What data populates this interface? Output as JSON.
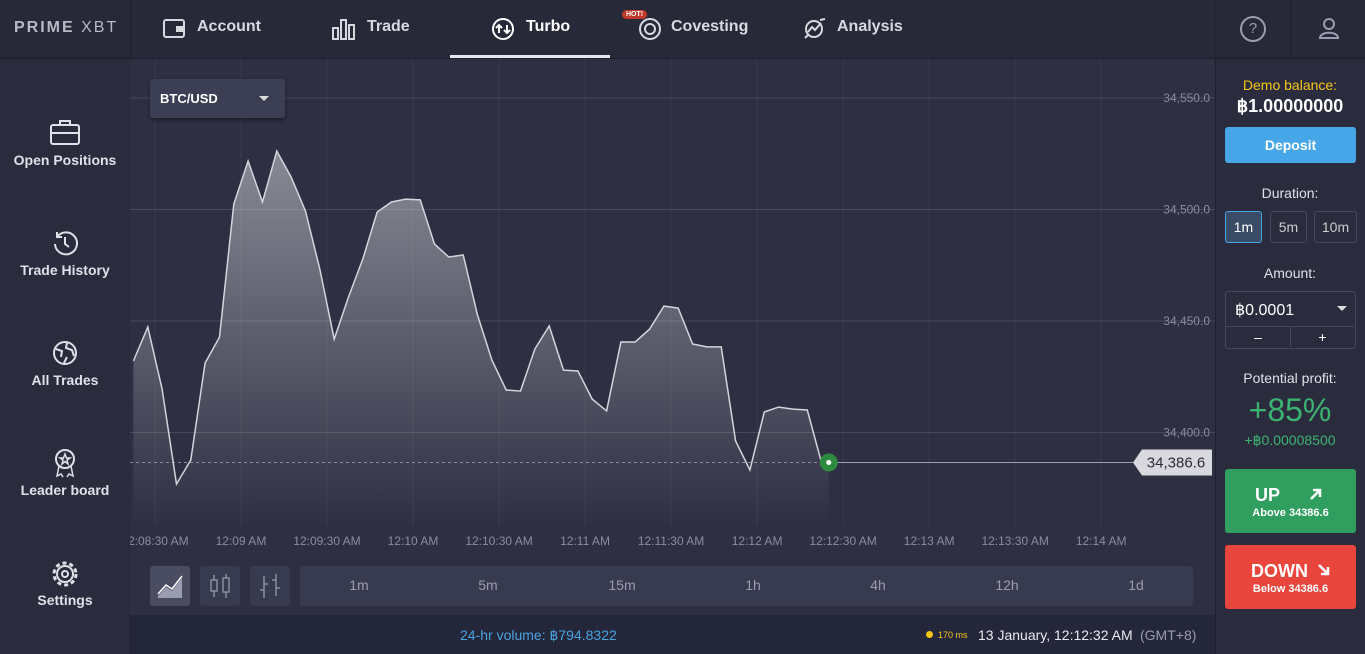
{
  "header": {
    "logo_brand": "PRIME",
    "logo_suffix": "XBT",
    "tabs": [
      "Account",
      "Trade",
      "Turbo",
      "Covesting",
      "Analysis"
    ],
    "hot_badge": "HOT!",
    "help": "?"
  },
  "sidebar": [
    "Open Positions",
    "Trade History",
    "All Trades",
    "Leader board",
    "Settings"
  ],
  "pair": "BTC/USD",
  "chart_data": {
    "type": "line",
    "color": "#d4d5dc",
    "grid": true,
    "x": [
      22.5,
      27.5,
      32.5,
      37.5,
      42.5,
      47.5,
      52.5,
      57.5,
      62.5,
      67.5,
      72.5,
      77.5,
      82.5,
      87.5,
      92.5,
      97.5,
      102.5,
      107.5,
      112.5,
      117.5,
      122.5,
      127.5,
      132.5,
      137.5,
      142.5,
      147.5,
      152.5,
      157.5,
      162.5,
      167.5,
      172.5,
      177.5,
      182.5,
      187.5,
      192.5,
      197.5,
      202.5,
      207.5,
      212.5,
      217.5,
      222.5,
      227.5,
      232.5,
      237.5,
      242.5,
      247.5,
      252.5,
      257.5,
      262.5,
      265
    ],
    "values": [
      34432.1,
      34447.3,
      34419.5,
      34376.9,
      34387.7,
      34431.2,
      34442.8,
      34502.5,
      34521.7,
      34503.4,
      34526.2,
      34514.6,
      34499.3,
      34473.3,
      34441.9,
      34460.8,
      34477.8,
      34498.9,
      34503.4,
      34504.7,
      34504.3,
      34484.5,
      34478.7,
      34479.6,
      34452.7,
      34432.5,
      34419.1,
      34418.6,
      34437.5,
      34447.8,
      34428.0,
      34427.6,
      34415.0,
      34409.7,
      34440.6,
      34440.6,
      34446.4,
      34456.7,
      34455.8,
      34439.7,
      34438.4,
      34438.4,
      34396.2,
      34383.2,
      34409.2,
      34411.4,
      34410.5,
      34410.1,
      34386.3,
      34386.6
    ],
    "xlim": [
      21.3,
      399.7
    ],
    "ylim": [
      34358.1,
      34567.5
    ],
    "xticks": [
      {
        "value": 30,
        "label": "12:08:30 AM"
      },
      {
        "value": 60,
        "label": "12:09 AM"
      },
      {
        "value": 90,
        "label": "12:09:30 AM"
      },
      {
        "value": 120,
        "label": "12:10 AM"
      },
      {
        "value": 150,
        "label": "12:10:30 AM"
      },
      {
        "value": 180,
        "label": "12:11 AM"
      },
      {
        "value": 210,
        "label": "12:11:30 AM"
      },
      {
        "value": 240,
        "label": "12:12 AM"
      },
      {
        "value": 270,
        "label": "12:12:30 AM"
      },
      {
        "value": 300,
        "label": "12:13 AM"
      },
      {
        "value": 330,
        "label": "12:13:30 AM"
      },
      {
        "value": 360,
        "label": "12:14 AM"
      }
    ],
    "yticks": [
      {
        "value": 34400,
        "label": "34,400.0"
      },
      {
        "value": 34450,
        "label": "34,450.0"
      },
      {
        "value": 34500,
        "label": "34,500.0"
      },
      {
        "value": 34550,
        "label": "34,550.0"
      }
    ],
    "current_price": 34386.6,
    "current_price_label": "34,386.6"
  },
  "timeframes": [
    "1m",
    "5m",
    "15m",
    "1h",
    "4h",
    "12h",
    "1d"
  ],
  "panel": {
    "balance_label": "Demo balance:",
    "balance": "฿1.00000000",
    "deposit": "Deposit",
    "duration_label": "Duration:",
    "durations": [
      "1m",
      "5m",
      "10m"
    ],
    "amount_label": "Amount:",
    "amount": "฿0.0001",
    "minus": "–",
    "plus": "+",
    "profit_label": "Potential profit:",
    "profit_pct": "+85%",
    "profit_amount": "+฿0.00008500",
    "up": "UP",
    "up_sub": "Above 34386.6",
    "down": "DOWN",
    "down_sub": "Below 34386.6"
  },
  "footer": {
    "volume": "24-hr volume: ฿794.8322",
    "latency": "170 ms",
    "datetime": "13 January, 12:12:32 AM",
    "timezone": "(GMT+8)"
  }
}
